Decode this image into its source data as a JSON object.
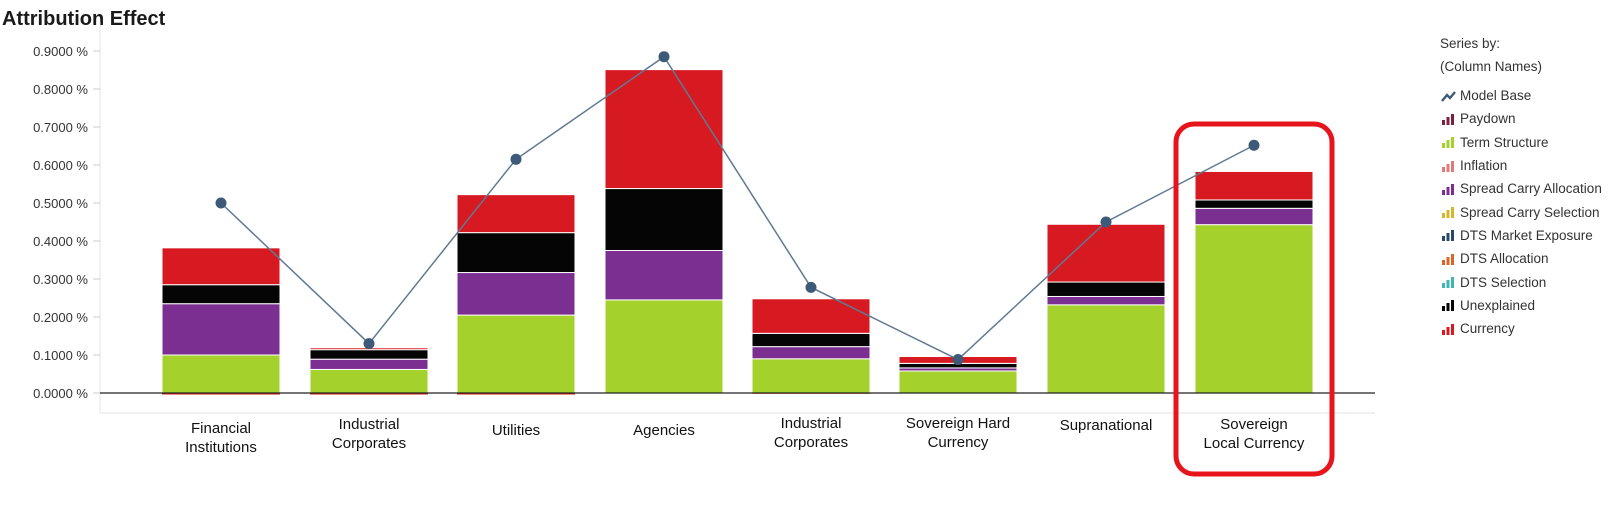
{
  "chart_data": {
    "type": "bar",
    "title": "Attribution Effect",
    "yticks": [
      "0.0000 %",
      "0.1000 %",
      "0.2000 %",
      "0.3000 %",
      "0.4000 %",
      "0.5000 %",
      "0.6000 %",
      "0.7000 %",
      "0.8000 %",
      "0.9000 %"
    ],
    "ylim": [
      -0.02,
      0.95
    ],
    "categories": [
      [
        "Financial",
        "Institutions"
      ],
      [
        "Industrial",
        "Corporates"
      ],
      [
        "Utilities"
      ],
      [
        "Agencies"
      ],
      [
        "Industrial",
        "Corporates"
      ],
      [
        "Sovereign Hard",
        "Currency"
      ],
      [
        "Supranational"
      ],
      [
        "Sovereign",
        "Local Currency"
      ]
    ],
    "highlighted_category_index": 7,
    "legend_header": [
      "Series by:",
      "(Column Names)"
    ],
    "line_series": {
      "name": "Model Base",
      "color": "#3d5a78",
      "values": [
        0.5,
        0.13,
        0.615,
        0.885,
        0.278,
        0.088,
        0.45,
        0.652
      ]
    },
    "series": [
      {
        "name": "Paydown",
        "color": "#7b2040",
        "values": [
          0,
          0,
          0,
          0,
          0,
          0,
          0,
          0
        ]
      },
      {
        "name": "Term Structure",
        "color": "#a4d12c",
        "values": [
          0.1,
          0.062,
          0.205,
          0.245,
          0.09,
          0.058,
          0.232,
          0.443
        ]
      },
      {
        "name": "Inflation",
        "color": "#e07a7a",
        "values": [
          0,
          0,
          0,
          0,
          0,
          0,
          0,
          0
        ]
      },
      {
        "name": "Spread Carry Allocation",
        "color": "#7a2f91",
        "values": [
          0.135,
          0.027,
          0.112,
          0.13,
          0.032,
          0.008,
          0.022,
          0.043
        ]
      },
      {
        "name": "Spread Carry Selection",
        "color": "#d4b72a",
        "values": [
          0,
          0,
          0,
          0,
          0,
          0,
          0,
          0
        ]
      },
      {
        "name": "DTS Market Exposure",
        "color": "#274a6b",
        "values": [
          0,
          0,
          0,
          0,
          0,
          0,
          0,
          0
        ]
      },
      {
        "name": "DTS Allocation",
        "color": "#d9652a",
        "values": [
          0,
          0,
          0,
          0,
          0,
          0,
          0,
          0
        ]
      },
      {
        "name": "DTS Selection",
        "color": "#3fb5b5",
        "values": [
          0,
          0,
          0,
          0,
          0,
          0,
          0,
          0
        ]
      },
      {
        "name": "Unexplained",
        "color": "#050505",
        "values": [
          0.05,
          0.025,
          0.105,
          0.163,
          0.035,
          0.012,
          0.038,
          0.022
        ]
      },
      {
        "name": "Currency",
        "color": "#d71a21",
        "values": [
          0.097,
          0.005,
          0.1,
          0.313,
          0.091,
          0.018,
          0.152,
          0.075
        ]
      }
    ],
    "negative_values": [
      -0.004,
      -0.004,
      -0.004,
      0,
      -0.002,
      0,
      0,
      0
    ]
  }
}
